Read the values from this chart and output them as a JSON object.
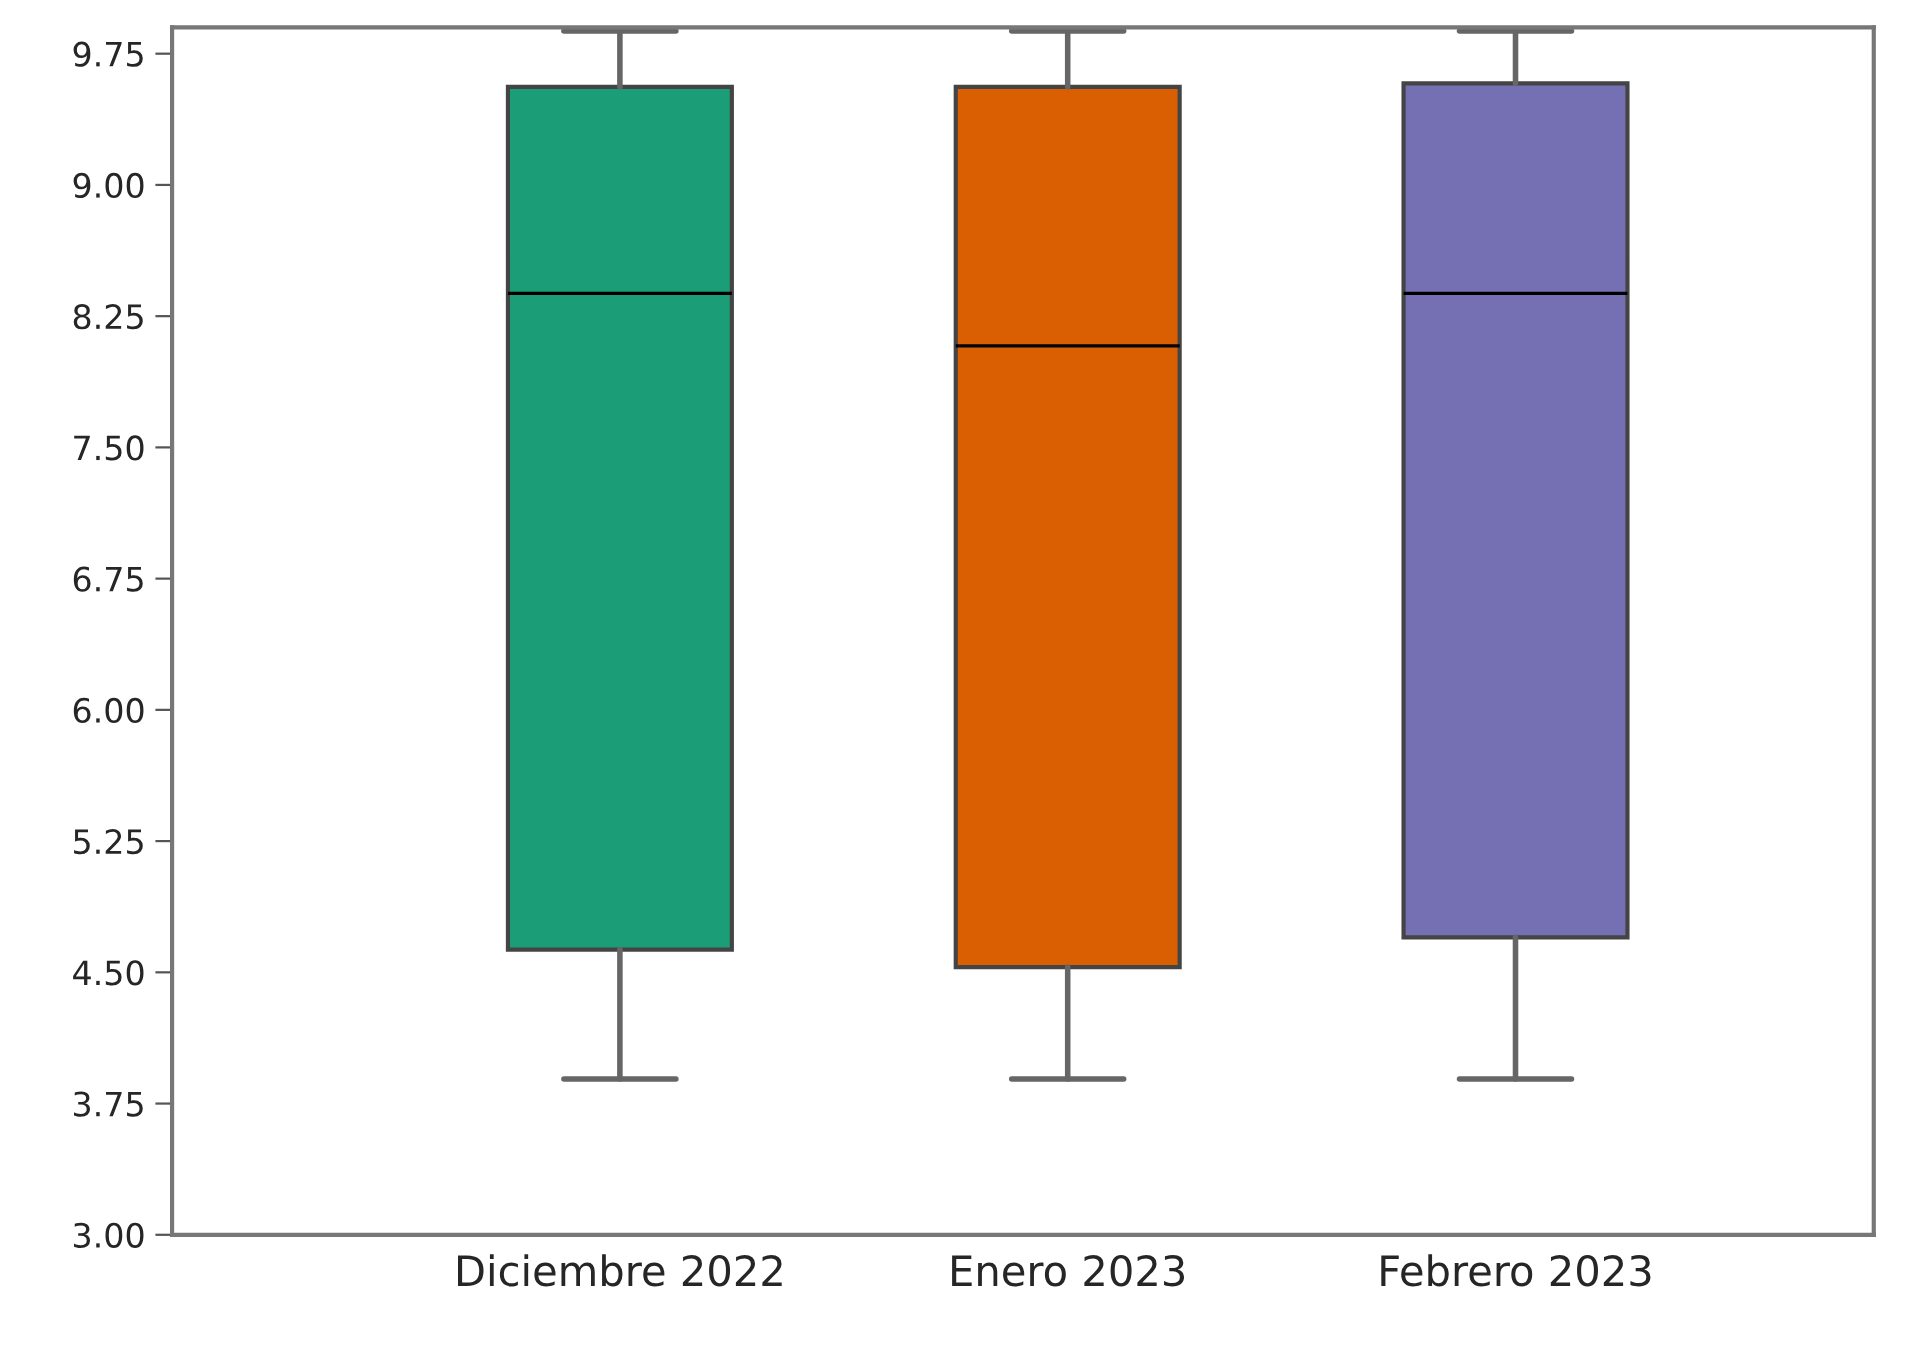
{
  "chart_data": {
    "type": "box",
    "categories": [
      "Diciembre 2022",
      "Enero 2023",
      "Febrero 2023"
    ],
    "colors": [
      "#1b9e77",
      "#d95f02",
      "#7570b3"
    ],
    "boxes": [
      {
        "low": 3.89,
        "q1": 4.63,
        "median": 8.38,
        "q3": 9.56,
        "high": 9.88
      },
      {
        "low": 3.89,
        "q1": 4.53,
        "median": 8.08,
        "q3": 9.56,
        "high": 9.88
      },
      {
        "low": 3.89,
        "q1": 4.7,
        "median": 8.38,
        "q3": 9.58,
        "high": 9.88
      }
    ],
    "ylim": [
      3.0,
      9.9
    ],
    "yticks": [
      {
        "value": 3.0,
        "label": "3.00"
      },
      {
        "value": 3.75,
        "label": "3.75"
      },
      {
        "value": 4.5,
        "label": "4.50"
      },
      {
        "value": 5.25,
        "label": "5.25"
      },
      {
        "value": 6.0,
        "label": "6.00"
      },
      {
        "value": 6.75,
        "label": "6.75"
      },
      {
        "value": 7.5,
        "label": "7.50"
      },
      {
        "value": 8.25,
        "label": "8.25"
      },
      {
        "value": 9.0,
        "label": "9.00"
      },
      {
        "value": 9.75,
        "label": "9.75"
      }
    ],
    "grid": false
  }
}
